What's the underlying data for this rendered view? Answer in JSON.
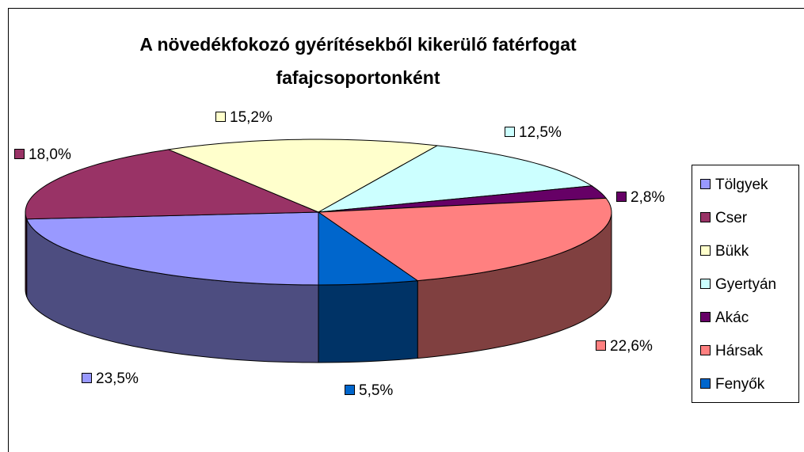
{
  "chart_data": {
    "type": "pie3d",
    "title": [
      "A növedékfokozó gyérítésekből kikerülő fatérfogat",
      "fafajcsoportonként"
    ],
    "categories": [
      "Tölgyek",
      "Cser",
      "Bükk",
      "Gyertyán",
      "Akác",
      "Hársak",
      "Fenyők"
    ],
    "values": [
      23.5,
      18.0,
      15.2,
      12.5,
      2.8,
      22.6,
      5.5
    ],
    "value_labels": [
      "23,5%",
      "18,0%",
      "15,2%",
      "12,5%",
      "2,8%",
      "22,6%",
      "5,5%"
    ],
    "colors": [
      "#9999ff",
      "#993366",
      "#ffffcc",
      "#ccffff",
      "#660066",
      "#ff8080",
      "#0066cc"
    ],
    "legend": "right"
  }
}
